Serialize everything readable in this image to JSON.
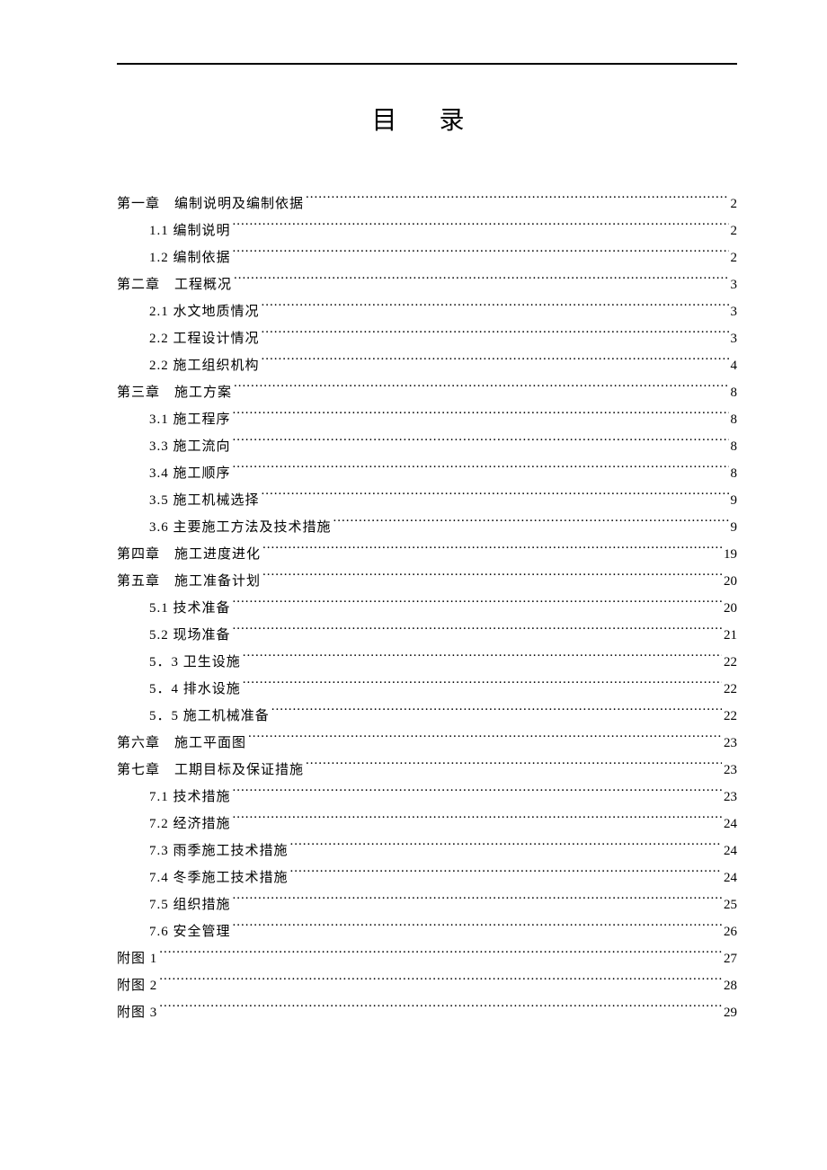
{
  "document": {
    "title": "目 录",
    "background_color": "#ffffff",
    "text_color": "#000000",
    "font_family": "SimSun",
    "title_fontsize": 28,
    "body_fontsize": 15,
    "toc": [
      {
        "level": 1,
        "label": "第一章　编制说明及编制依据",
        "page": "2"
      },
      {
        "level": 2,
        "label": "1.1 编制说明",
        "page": "2"
      },
      {
        "level": 2,
        "label": "1.2 编制依据",
        "page": "2"
      },
      {
        "level": 1,
        "label": "第二章　工程概况",
        "page": "3"
      },
      {
        "level": 2,
        "label": "2.1 水文地质情况",
        "page": "3"
      },
      {
        "level": 2,
        "label": "2.2 工程设计情况",
        "page": "3"
      },
      {
        "level": 2,
        "label": "2.2 施工组织机构",
        "page": "4"
      },
      {
        "level": 1,
        "label": "第三章　施工方案",
        "page": "8"
      },
      {
        "level": 2,
        "label": "3.1 施工程序",
        "page": "8"
      },
      {
        "level": 2,
        "label": "3.3 施工流向",
        "page": "8"
      },
      {
        "level": 2,
        "label": "3.4 施工顺序",
        "page": "8"
      },
      {
        "level": 2,
        "label": "3.5 施工机械选择",
        "page": "9"
      },
      {
        "level": 2,
        "label": "3.6 主要施工方法及技术措施",
        "page": "9"
      },
      {
        "level": 1,
        "label": "第四章　施工进度进化",
        "page": "19"
      },
      {
        "level": 1,
        "label": "第五章　施工准备计划",
        "page": "20"
      },
      {
        "level": 2,
        "label": "5.1 技术准备",
        "page": "20"
      },
      {
        "level": 2,
        "label": "5.2 现场准备",
        "page": "21"
      },
      {
        "level": 2,
        "label": "5．3 卫生设施",
        "page": "22"
      },
      {
        "level": 2,
        "label": "5．4 排水设施",
        "page": "22"
      },
      {
        "level": 2,
        "label": "5．5 施工机械准备",
        "page": "22"
      },
      {
        "level": 1,
        "label": "第六章　施工平面图",
        "page": "23"
      },
      {
        "level": 1,
        "label": "第七章　工期目标及保证措施",
        "page": "23"
      },
      {
        "level": 2,
        "label": "7.1 技术措施",
        "page": "23"
      },
      {
        "level": 2,
        "label": "7.2 经济措施",
        "page": "24"
      },
      {
        "level": 2,
        "label": "7.3 雨季施工技术措施",
        "page": "24"
      },
      {
        "level": 2,
        "label": "7.4 冬季施工技术措施",
        "page": "24"
      },
      {
        "level": 2,
        "label": "7.5 组织措施",
        "page": "25"
      },
      {
        "level": 2,
        "label": "7.6 安全管理",
        "page": "26"
      },
      {
        "level": 1,
        "label": "附图 1",
        "page": "27"
      },
      {
        "level": 1,
        "label": "附图 2",
        "page": "28"
      },
      {
        "level": 1,
        "label": "附图 3",
        "page": "29"
      }
    ]
  }
}
